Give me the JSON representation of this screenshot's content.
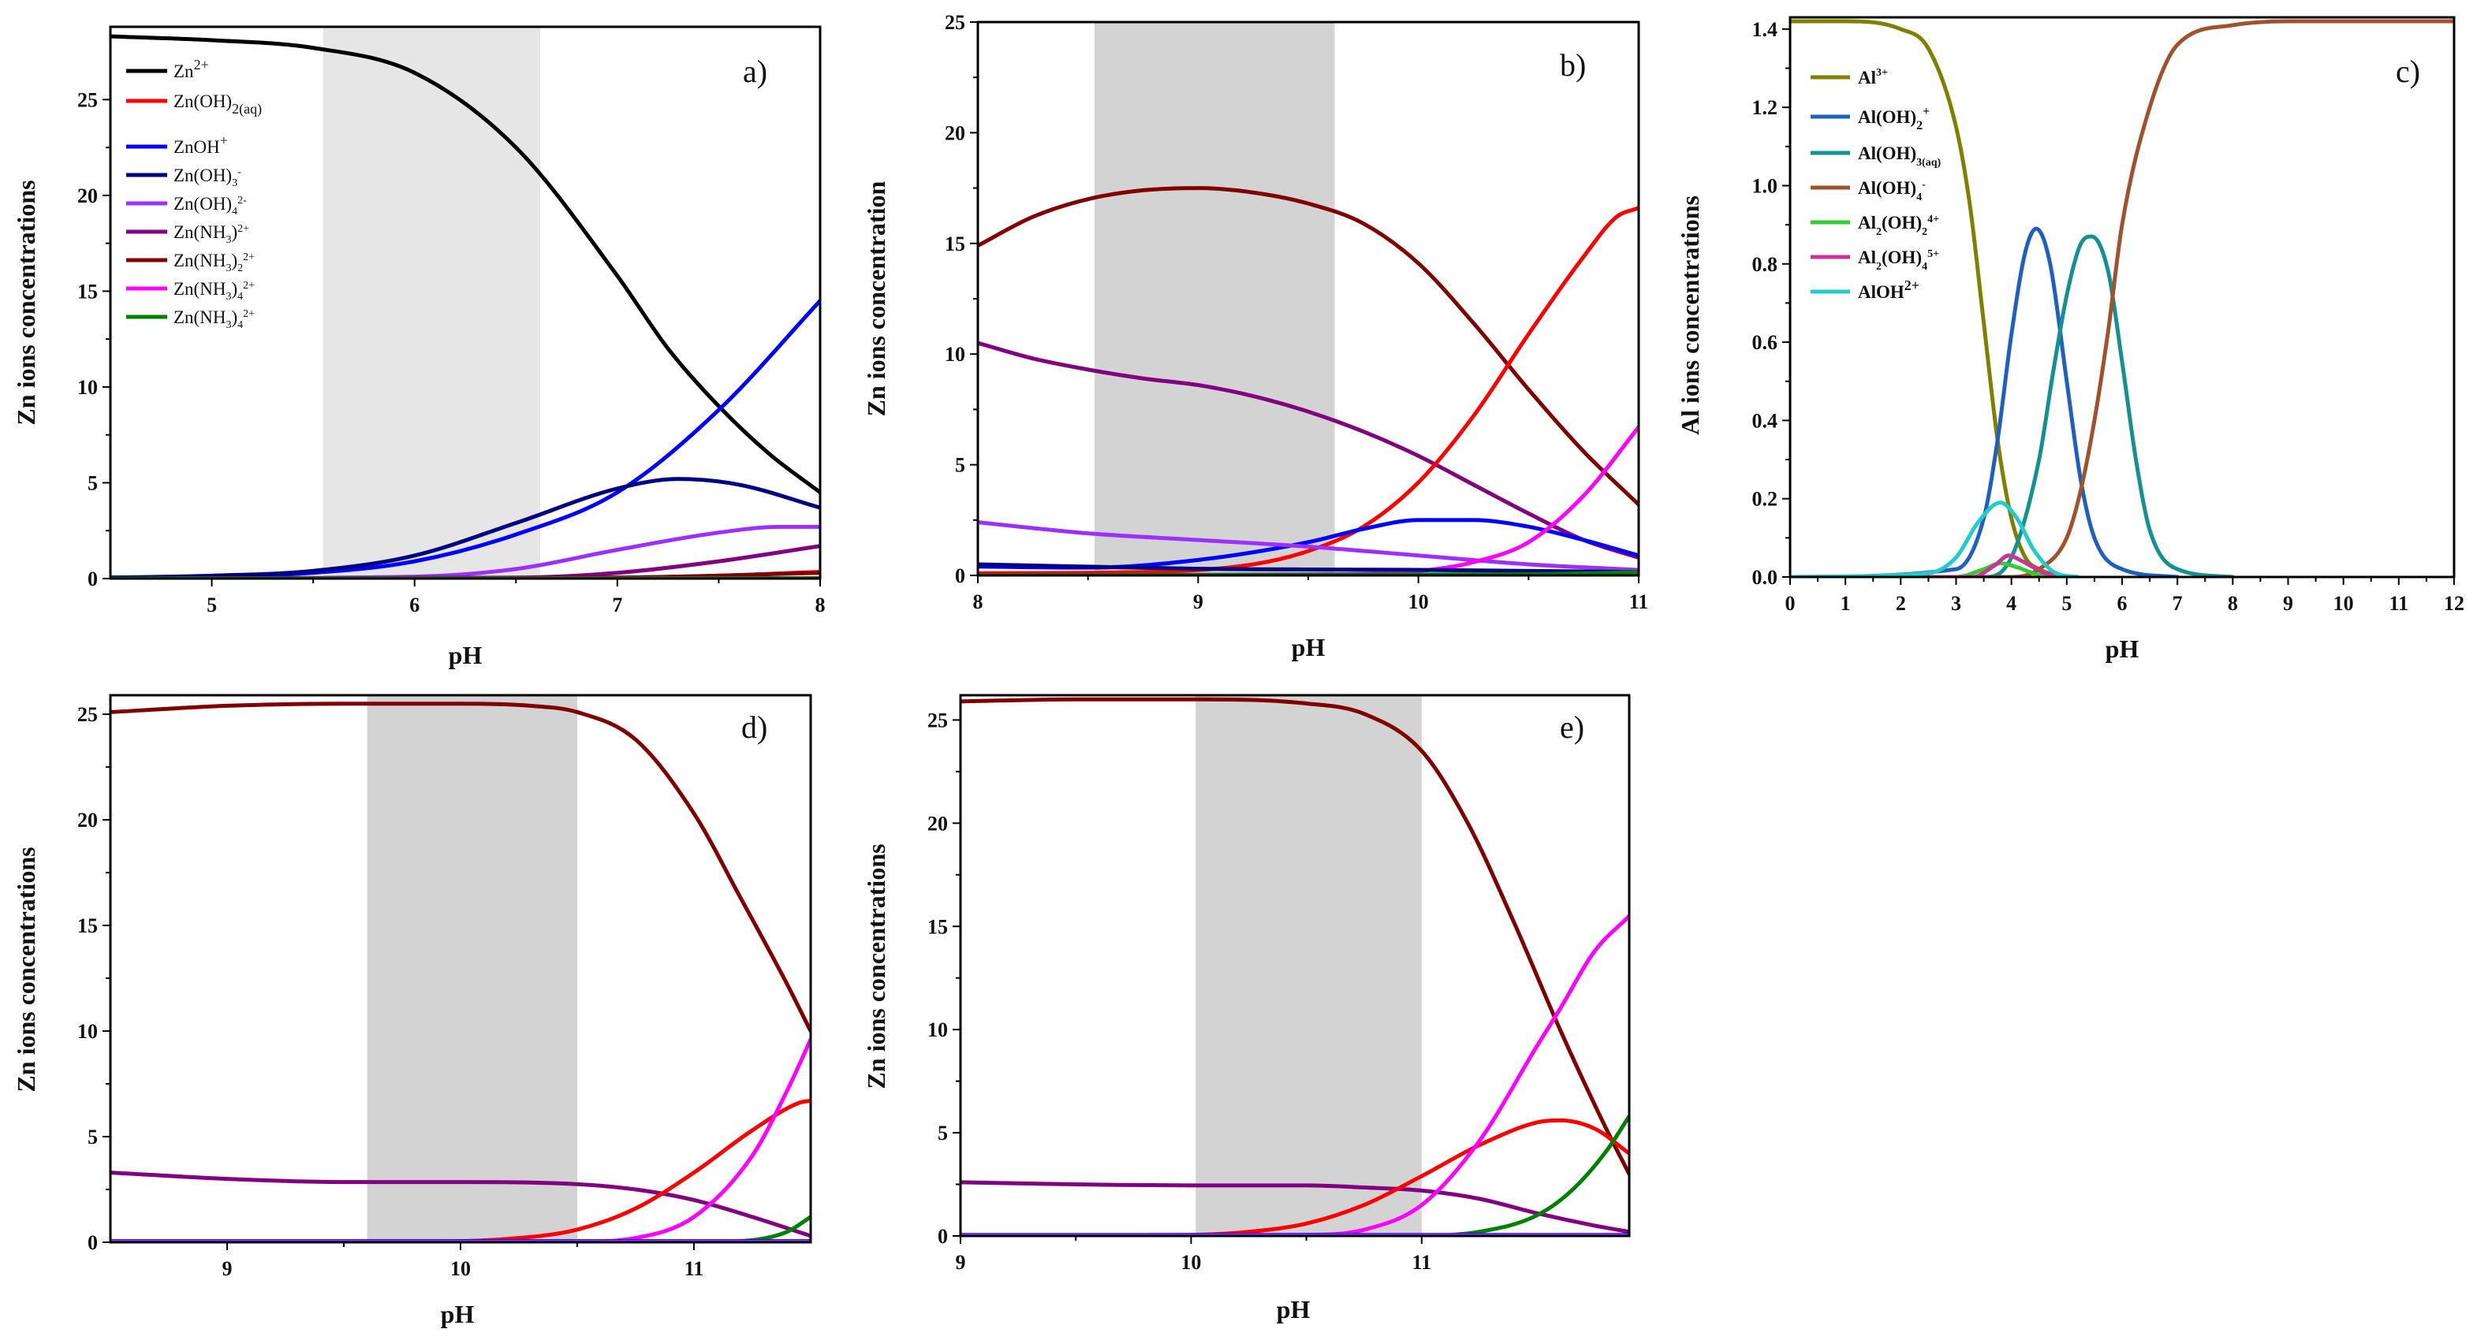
{
  "figure": {
    "description_labels": [
      "a)",
      "b)",
      "c)",
      "d)",
      "e)"
    ]
  },
  "chart_data": [
    {
      "id": "a",
      "type": "line",
      "panel_label": "a)",
      "xlabel": "pH",
      "ylabel": "Zn ions concentrations",
      "xlim": [
        4.5,
        8
      ],
      "ylim": [
        0,
        28.8
      ],
      "xticks": [
        5,
        6,
        7,
        8
      ],
      "yticks": [
        0,
        5,
        10,
        15,
        20,
        25
      ],
      "shaded_region": [
        5.55,
        6.62
      ],
      "shade_color": "#e6e6e6",
      "legend": [
        {
          "label": "Zn2+",
          "color": "#000000"
        },
        {
          "label": "Zn(OH)2(aq)",
          "color": "#ff0000"
        },
        {
          "label": "ZnOH+",
          "color": "#0000ff"
        },
        {
          "label": "Zn(OH)3-",
          "color": "#000080"
        },
        {
          "label": "Zn(OH)4 2-",
          "color": "#9b30ff"
        },
        {
          "label": "Zn(NH3)2+",
          "color": "#800080"
        },
        {
          "label": "Zn(NH3)2 2+",
          "color": "#800000"
        },
        {
          "label": "Zn(NH3)3 2+",
          "color": "#ff00ff"
        },
        {
          "label": "Zn(NH3)4 2+",
          "color": "#008000"
        }
      ],
      "series": [
        {
          "name": "Zn2+",
          "color": "#000000",
          "x": [
            4.5,
            5,
            5.5,
            6,
            6.5,
            7,
            7.25,
            7.5,
            7.75,
            8
          ],
          "y": [
            28.3,
            28.1,
            27.7,
            26.4,
            22.5,
            15.8,
            12.0,
            9.0,
            6.5,
            4.5
          ]
        },
        {
          "name": "Zn(OH)2(aq)",
          "color": "#ff0000",
          "x": [
            4.5,
            6,
            7,
            7.5,
            8
          ],
          "y": [
            0,
            0,
            0.05,
            0.15,
            0.35
          ]
        },
        {
          "name": "ZnOH+",
          "color": "#0000ff",
          "x": [
            4.5,
            5,
            5.5,
            6,
            6.5,
            7,
            7.5,
            8
          ],
          "y": [
            0.05,
            0.1,
            0.3,
            0.9,
            2.3,
            4.5,
            8.8,
            14.5
          ]
        },
        {
          "name": "Zn(OH)3-",
          "color": "#000080",
          "x": [
            4.5,
            5,
            5.5,
            6,
            6.5,
            7,
            7.3,
            7.6,
            8
          ],
          "y": [
            0.05,
            0.15,
            0.4,
            1.2,
            2.9,
            4.7,
            5.2,
            4.9,
            3.7
          ]
        },
        {
          "name": "Zn(OH)4 2-",
          "color": "#9b30ff",
          "x": [
            4.5,
            6,
            6.5,
            7,
            7.5,
            7.8,
            8
          ],
          "y": [
            0,
            0.1,
            0.5,
            1.5,
            2.4,
            2.7,
            2.7
          ]
        },
        {
          "name": "Zn(NH3)2+",
          "color": "#800080",
          "x": [
            4.5,
            6.5,
            7,
            7.5,
            8
          ],
          "y": [
            0,
            0.05,
            0.3,
            0.9,
            1.7
          ]
        },
        {
          "name": "Zn(NH3)2 2+",
          "color": "#800000",
          "x": [
            4.5,
            7,
            8
          ],
          "y": [
            0,
            0.05,
            0.3
          ]
        },
        {
          "name": "Zn(NH3)3 2+",
          "color": "#ff00ff",
          "x": [
            4.5,
            8
          ],
          "y": [
            0,
            0.02
          ]
        },
        {
          "name": "Zn(NH3)4 2+",
          "color": "#008000",
          "x": [
            4.5,
            8
          ],
          "y": [
            0,
            0.01
          ]
        }
      ]
    },
    {
      "id": "b",
      "type": "line",
      "panel_label": "b)",
      "xlabel": "pH",
      "ylabel": "Zn ions concentration",
      "xlim": [
        8,
        11
      ],
      "ylim": [
        0,
        25
      ],
      "xticks": [
        8,
        9,
        10,
        11
      ],
      "yticks": [
        0,
        5,
        10,
        15,
        20,
        25
      ],
      "shaded_region": [
        8.53,
        9.62
      ],
      "shade_color": "#d3d3d3",
      "series": [
        {
          "name": "Zn(NH3)2 2+",
          "color": "#800000",
          "x": [
            8,
            8.25,
            8.5,
            8.75,
            9,
            9.25,
            9.5,
            9.75,
            10,
            10.25,
            10.5,
            10.75,
            11
          ],
          "y": [
            14.9,
            16.2,
            17.0,
            17.4,
            17.5,
            17.3,
            16.8,
            15.9,
            14.1,
            11.4,
            8.4,
            5.6,
            3.2
          ]
        },
        {
          "name": "Zn(NH3)2+",
          "color": "#800080",
          "x": [
            8,
            8.25,
            8.5,
            8.75,
            9,
            9.25,
            9.5,
            9.75,
            10,
            10.25,
            10.5,
            10.75,
            11
          ],
          "y": [
            10.5,
            9.8,
            9.3,
            8.9,
            8.6,
            8.1,
            7.4,
            6.5,
            5.4,
            4.1,
            2.8,
            1.6,
            0.8
          ]
        },
        {
          "name": "Zn(OH)2(aq)",
          "color": "#ff0000",
          "x": [
            8,
            8.75,
            9.25,
            9.5,
            9.75,
            10,
            10.25,
            10.5,
            10.75,
            10.9,
            11
          ],
          "y": [
            0.1,
            0.15,
            0.5,
            1.1,
            2.2,
            4.2,
            7.2,
            10.9,
            14.4,
            16.2,
            16.6
          ]
        },
        {
          "name": "ZnOH+",
          "color": "#0000ff",
          "x": [
            8,
            8.5,
            9,
            9.5,
            9.75,
            10,
            10.25,
            10.5,
            10.75,
            11
          ],
          "y": [
            0.4,
            0.35,
            0.7,
            1.5,
            2.1,
            2.5,
            2.5,
            2.2,
            1.6,
            0.9
          ]
        },
        {
          "name": "Zn(OH)4 2-",
          "color": "#9b30ff",
          "x": [
            8,
            8.5,
            9,
            9.5,
            10,
            10.5,
            11
          ],
          "y": [
            2.4,
            1.9,
            1.6,
            1.3,
            0.9,
            0.5,
            0.25
          ]
        },
        {
          "name": "Zn(NH3)3 2+",
          "color": "#ff00ff",
          "x": [
            8,
            9.5,
            10,
            10.25,
            10.5,
            10.75,
            11
          ],
          "y": [
            0,
            0.05,
            0.2,
            0.6,
            1.5,
            3.6,
            6.7
          ]
        },
        {
          "name": "Zn(OH)3-",
          "color": "#000080",
          "x": [
            8,
            9,
            10,
            11
          ],
          "y": [
            0.5,
            0.3,
            0.25,
            0.15
          ]
        },
        {
          "name": "Zn(NH3)4 2+",
          "color": "#008000",
          "x": [
            8,
            10.5,
            11
          ],
          "y": [
            0,
            0.05,
            0.15
          ]
        }
      ]
    },
    {
      "id": "c",
      "type": "line",
      "panel_label": "c)",
      "xlabel": "pH",
      "ylabel": "Al ions concentrations",
      "xlim": [
        0,
        12
      ],
      "ylim": [
        0,
        1.43
      ],
      "xticks": [
        0,
        1,
        2,
        3,
        4,
        5,
        6,
        7,
        8,
        9,
        10,
        11,
        12
      ],
      "yticks": [
        0.0,
        0.2,
        0.4,
        0.6,
        0.8,
        1.0,
        1.2,
        1.4
      ],
      "ytick_labels": [
        "0.0",
        "0.2",
        "0.4",
        "0.6",
        "0.8",
        "1.0",
        "1.2",
        "1.4"
      ],
      "legend": [
        {
          "label": "Al3+",
          "color": "#808000"
        },
        {
          "label": "Al(OH)2+",
          "color": "#1f5fbf"
        },
        {
          "label": "Al(OH)3(aq)",
          "color": "#139090"
        },
        {
          "label": "Al(OH)4-",
          "color": "#a0522d"
        },
        {
          "label": "Al2(OH)2 4+",
          "color": "#33cc33"
        },
        {
          "label": "Al2(OH)4 5+",
          "color": "#cc3399"
        },
        {
          "label": "AlOH2+",
          "color": "#22cccc"
        }
      ],
      "series": [
        {
          "name": "Al3+",
          "color": "#808000",
          "x": [
            0,
            1,
            2,
            2.5,
            3,
            3.25,
            3.5,
            3.75,
            4,
            4.25,
            4.5,
            5
          ],
          "y": [
            1.42,
            1.42,
            1.4,
            1.35,
            1.15,
            0.95,
            0.65,
            0.35,
            0.15,
            0.05,
            0.02,
            0
          ]
        },
        {
          "name": "Al(OH)2+",
          "color": "#1f5fbf",
          "x": [
            0,
            3,
            3.5,
            3.75,
            4,
            4.25,
            4.45,
            4.7,
            5,
            5.25,
            5.5,
            6,
            7
          ],
          "y": [
            0,
            0.02,
            0.15,
            0.35,
            0.62,
            0.83,
            0.89,
            0.8,
            0.5,
            0.25,
            0.1,
            0.02,
            0
          ]
        },
        {
          "name": "Al(OH)3(aq)",
          "color": "#139090",
          "x": [
            0,
            3.5,
            4,
            4.5,
            4.75,
            5,
            5.25,
            5.45,
            5.75,
            6,
            6.25,
            6.5,
            7,
            8
          ],
          "y": [
            0,
            0,
            0.05,
            0.3,
            0.52,
            0.72,
            0.85,
            0.87,
            0.78,
            0.55,
            0.3,
            0.12,
            0.02,
            0
          ]
        },
        {
          "name": "Al(OH)4-",
          "color": "#a0522d",
          "x": [
            0,
            4,
            4.5,
            5,
            5.25,
            5.5,
            5.75,
            6,
            6.5,
            7,
            8,
            9,
            12
          ],
          "y": [
            0,
            0,
            0.02,
            0.1,
            0.22,
            0.4,
            0.63,
            0.9,
            1.2,
            1.36,
            1.41,
            1.42,
            1.42
          ]
        },
        {
          "name": "Al2(OH)2 4+",
          "color": "#33cc33",
          "x": [
            0,
            3,
            3.5,
            3.8,
            4.1,
            4.5,
            5
          ],
          "y": [
            0,
            0,
            0.02,
            0.035,
            0.025,
            0.005,
            0
          ]
        },
        {
          "name": "Al2(OH)4 5+",
          "color": "#cc3399",
          "x": [
            0,
            3.3,
            3.7,
            3.95,
            4.2,
            4.6,
            5
          ],
          "y": [
            0,
            0,
            0.03,
            0.055,
            0.04,
            0.01,
            0
          ]
        },
        {
          "name": "AlOH2+",
          "color": "#22cccc",
          "x": [
            0,
            2.5,
            3,
            3.4,
            3.8,
            4.1,
            4.4,
            4.8,
            5.2
          ],
          "y": [
            0,
            0.01,
            0.05,
            0.14,
            0.19,
            0.15,
            0.07,
            0.01,
            0
          ]
        }
      ]
    },
    {
      "id": "d",
      "type": "line",
      "panel_label": "d)",
      "xlabel": "pH",
      "ylabel": "Zn ions concentrations",
      "xlim": [
        8.5,
        11.5
      ],
      "ylim": [
        0,
        25.9
      ],
      "xticks": [
        9,
        10,
        11
      ],
      "yticks": [
        0,
        5,
        10,
        15,
        20,
        25
      ],
      "shaded_region": [
        9.6,
        10.5
      ],
      "shade_color": "#d3d3d3",
      "series": [
        {
          "name": "Zn(NH3)2 2+",
          "color": "#800000",
          "x": [
            8.5,
            9,
            9.5,
            10,
            10.3,
            10.5,
            10.75,
            11,
            11.2,
            11.4,
            11.5
          ],
          "y": [
            25.1,
            25.4,
            25.5,
            25.5,
            25.4,
            25.1,
            23.8,
            20.3,
            16.3,
            12.2,
            10.0
          ]
        },
        {
          "name": "Zn(NH3)2+",
          "color": "#800080",
          "x": [
            8.5,
            9,
            9.5,
            10,
            10.5,
            10.75,
            11,
            11.25,
            11.5
          ],
          "y": [
            3.3,
            3.0,
            2.85,
            2.85,
            2.75,
            2.5,
            2.0,
            1.2,
            0.3
          ]
        },
        {
          "name": "Zn(OH)2(aq)",
          "color": "#ff0000",
          "x": [
            8.5,
            9.75,
            10.25,
            10.5,
            10.75,
            11,
            11.25,
            11.45,
            11.5
          ],
          "y": [
            0,
            0.02,
            0.2,
            0.6,
            1.6,
            3.3,
            5.3,
            6.6,
            6.7
          ]
        },
        {
          "name": "Zn(NH3)3 2+",
          "color": "#ff00ff",
          "x": [
            8.5,
            10.5,
            10.75,
            11,
            11.25,
            11.4,
            11.5
          ],
          "y": [
            0,
            0.02,
            0.2,
            1.2,
            4.1,
            7.2,
            9.6
          ]
        },
        {
          "name": "Zn(NH3)4 2+",
          "color": "#008000",
          "x": [
            8.5,
            11,
            11.25,
            11.4,
            11.5
          ],
          "y": [
            0,
            0,
            0.1,
            0.5,
            1.2
          ]
        },
        {
          "name": "ZnOH+",
          "color": "#0000ff",
          "x": [
            8.5,
            11.5
          ],
          "y": [
            0.05,
            0.05
          ]
        },
        {
          "name": "Zn(OH)4 2-",
          "color": "#9b30ff",
          "x": [
            8.5,
            11.5
          ],
          "y": [
            0.02,
            0.02
          ]
        }
      ]
    },
    {
      "id": "e",
      "type": "line",
      "panel_label": "e)",
      "xlabel": "pH",
      "ylabel": "Zn ions concentrations",
      "xlim": [
        9,
        11.9
      ],
      "ylim": [
        0,
        26.2
      ],
      "xticks": [
        9,
        10,
        11
      ],
      "yticks": [
        0,
        5,
        10,
        15,
        20,
        25
      ],
      "shaded_region": [
        10.02,
        11.0
      ],
      "shade_color": "#d3d3d3",
      "series": [
        {
          "name": "Zn(NH3)2 2+",
          "color": "#800000",
          "x": [
            9,
            9.5,
            10,
            10.5,
            10.75,
            11,
            11.2,
            11.4,
            11.6,
            11.8,
            11.9
          ],
          "y": [
            25.9,
            26.0,
            26.0,
            25.8,
            25.3,
            23.5,
            20.0,
            15.2,
            10.0,
            5.2,
            3.0
          ]
        },
        {
          "name": "Zn(NH3)2+",
          "color": "#800080",
          "x": [
            9,
            9.5,
            10,
            10.5,
            10.75,
            11,
            11.25,
            11.5,
            11.75,
            11.9
          ],
          "y": [
            2.6,
            2.5,
            2.45,
            2.45,
            2.35,
            2.2,
            1.8,
            1.1,
            0.5,
            0.2
          ]
        },
        {
          "name": "Zn(OH)2(aq)",
          "color": "#ff0000",
          "x": [
            9,
            10,
            10.25,
            10.5,
            10.75,
            11,
            11.25,
            11.5,
            11.6,
            11.75,
            11.9
          ],
          "y": [
            0,
            0.05,
            0.2,
            0.6,
            1.5,
            2.9,
            4.4,
            5.5,
            5.6,
            5.2,
            4.0
          ]
        },
        {
          "name": "Zn(NH3)3 2+",
          "color": "#ff00ff",
          "x": [
            9,
            10.5,
            10.75,
            11,
            11.25,
            11.5,
            11.6,
            11.75,
            11.9
          ],
          "y": [
            0,
            0.05,
            0.3,
            1.5,
            4.6,
            9.2,
            11.0,
            13.8,
            15.5
          ]
        },
        {
          "name": "Zn(NH3)4 2+",
          "color": "#008000",
          "x": [
            9,
            11,
            11.25,
            11.5,
            11.65,
            11.8,
            11.9
          ],
          "y": [
            0,
            0.02,
            0.2,
            1.0,
            2.2,
            4.1,
            5.8
          ]
        },
        {
          "name": "ZnOH+",
          "color": "#0000ff",
          "x": [
            9,
            11.9
          ],
          "y": [
            0.05,
            0.05
          ]
        },
        {
          "name": "Zn(OH)4 2-",
          "color": "#9b30ff",
          "x": [
            9,
            11.9
          ],
          "y": [
            0.02,
            0.02
          ]
        }
      ]
    }
  ]
}
